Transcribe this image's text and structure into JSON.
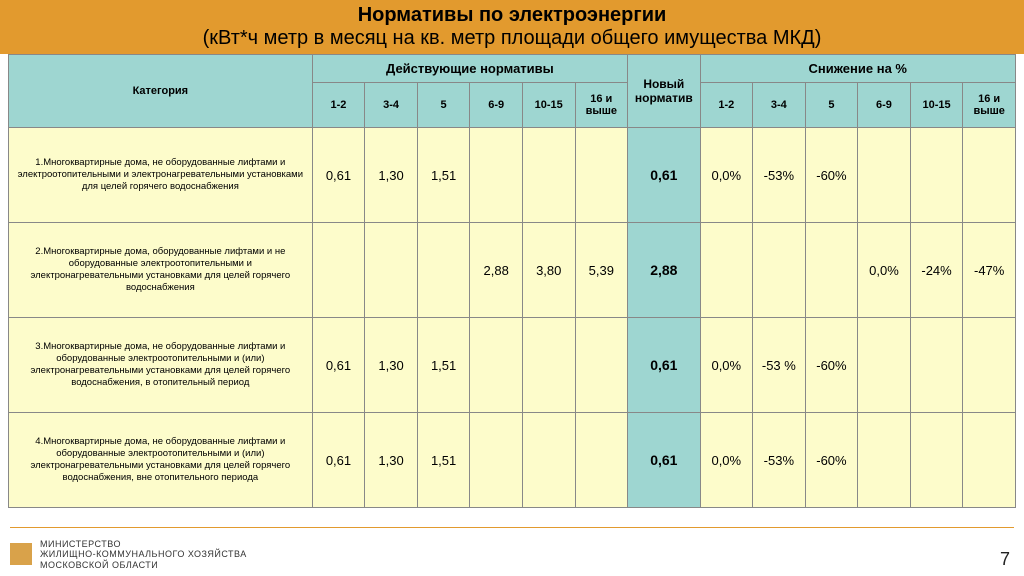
{
  "title": {
    "line1": "Нормативы по электроэнергии",
    "line2": "(кВт*ч метр в месяц на кв. метр  площади общего имущества МКД)"
  },
  "table": {
    "headers": {
      "category": "Категория",
      "current_group": "Действующие нормативы",
      "new_norm": "Новый норматив",
      "reduction_group": "Снижение на %",
      "sub": [
        "1-2",
        "3-4",
        "5",
        "6-9",
        "10-15",
        "16 и выше"
      ]
    },
    "rows": [
      {
        "category": "1.Многоквартирные дома, не оборудованные лифтами и электроотопительными и электронагревательными установками для целей горячего водоснабжения",
        "current": [
          "0,61",
          "1,30",
          "1,51",
          "",
          "",
          ""
        ],
        "new": "0,61",
        "reduction": [
          "0,0%",
          "-53%",
          "-60%",
          "",
          "",
          ""
        ]
      },
      {
        "category": "2.Многоквартирные дома, оборудованные лифтами и не оборудованные электроотопительными и электронагревательными установками для целей горячего водоснабжения",
        "current": [
          "",
          "",
          "",
          "2,88",
          "3,80",
          "5,39"
        ],
        "new": "2,88",
        "reduction": [
          "",
          "",
          "",
          "0,0%",
          "-24%",
          "-47%"
        ]
      },
      {
        "category": "3.Многоквартирные дома, не оборудованные лифтами и оборудованные электроотопительными и (или) электронагревательными установками для целей горячего водоснабжения, в отопительный период",
        "current": [
          "0,61",
          "1,30",
          "1,51",
          "",
          "",
          ""
        ],
        "new": "0,61",
        "reduction": [
          "0,0%",
          "-53 %",
          "-60%",
          "",
          "",
          ""
        ]
      },
      {
        "category": "4.Многоквартирные дома, не оборудованные лифтами и оборудованные электроотопительными и (или) электронагревательными установками для целей горячего водоснабжения, вне отопительного периода",
        "current": [
          "0,61",
          "1,30",
          "1,51",
          "",
          "",
          ""
        ],
        "new": "0,61",
        "reduction": [
          "0,0%",
          "-53%",
          "-60%",
          "",
          "",
          ""
        ]
      }
    ]
  },
  "footer": {
    "line1": "МИНИСТЕРСТВО",
    "line2": "ЖИЛИЩНО-КОММУНАЛЬНОГО ХОЗЯЙСТВА",
    "line3": "МОСКОВСКОЙ ОБЛАСТИ"
  },
  "page_number": "7",
  "colors": {
    "title_bg": "#e29a2e",
    "header_bg": "#9ed6d1",
    "cell_bg": "#fdfccb",
    "border": "#888888"
  }
}
